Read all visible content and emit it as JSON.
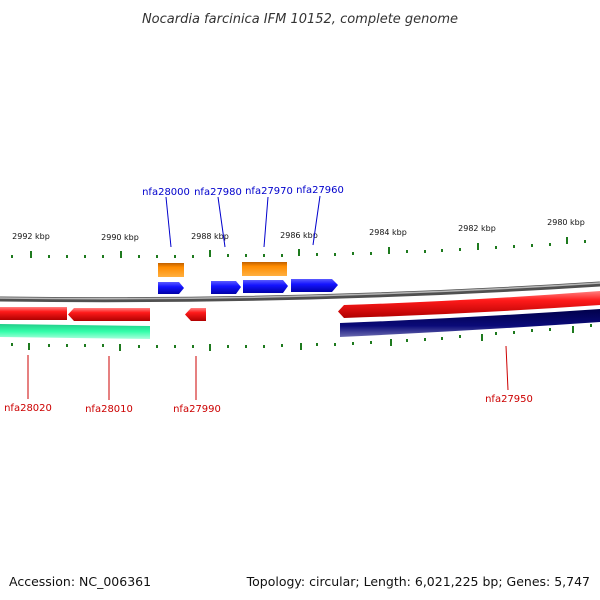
{
  "title": "Nocardia farcinica IFM 10152, complete genome",
  "footer": {
    "accession": "Accession: NC_006361",
    "summary": "Topology: circular; Length: 6,021,225 bp; Genes: 5,747"
  },
  "scale_labels": [
    "2992 kbp",
    "2990 kbp",
    "2988 kbp",
    "2986 kbp",
    "2984 kbp",
    "2982 kbp",
    "2980 kbp"
  ],
  "genes_forward": [
    "nfa28000",
    "nfa27980",
    "nfa27970",
    "nfa27960"
  ],
  "genes_reverse": [
    "nfa28020",
    "nfa28010",
    "nfa27990",
    "nfa27950"
  ],
  "colors": {
    "forward_label": "#0000cc",
    "reverse_label": "#cc0000",
    "forward_gene": "#1414ff",
    "reverse_gene": "#ff1a1a",
    "rna_gene": "#ff8c00",
    "tick": "#1e7a1e",
    "backbone": "#808080",
    "track_green": "#22ee99",
    "track_navy": "#0a0a78"
  }
}
